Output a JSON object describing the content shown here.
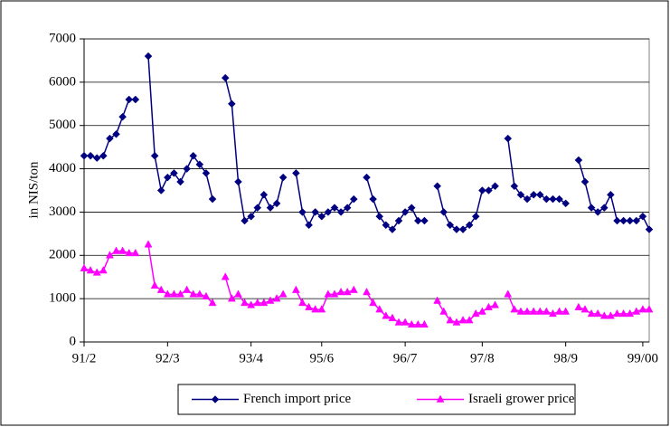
{
  "chart_data": {
    "type": "line",
    "y_label": "in NIS/ton",
    "categories": [
      "91/2",
      null,
      null,
      null,
      null,
      null,
      null,
      null,
      null,
      null,
      null,
      null,
      null,
      "92/3",
      null,
      null,
      null,
      null,
      null,
      null,
      null,
      null,
      null,
      null,
      null,
      null,
      "93/4",
      null,
      null,
      null,
      null,
      null,
      null,
      null,
      null,
      null,
      null,
      "95/6",
      null,
      null,
      null,
      null,
      null,
      null,
      null,
      null,
      null,
      null,
      null,
      null,
      "96/7",
      null,
      null,
      null,
      null,
      null,
      null,
      null,
      null,
      null,
      null,
      null,
      "97/8",
      null,
      null,
      null,
      null,
      null,
      null,
      null,
      null,
      null,
      null,
      null,
      null,
      "98/9",
      null,
      null,
      null,
      null,
      null,
      null,
      null,
      null,
      null,
      null,
      null,
      "99/00",
      null
    ],
    "series": [
      {
        "name": "French import price",
        "color": "#000080",
        "marker": "diamond",
        "values": [
          4300,
          4300,
          4250,
          4300,
          4700,
          4800,
          5200,
          5600,
          5600,
          null,
          6600,
          4300,
          3500,
          3800,
          3900,
          3700,
          4000,
          4300,
          4100,
          3900,
          3300,
          null,
          6100,
          5500,
          3700,
          2800,
          2900,
          3100,
          3400,
          3100,
          3200,
          3800,
          null,
          3900,
          3000,
          2700,
          3000,
          2900,
          3000,
          3100,
          3000,
          3100,
          3300,
          null,
          3800,
          3300,
          2900,
          2700,
          2600,
          2800,
          3000,
          3100,
          2800,
          2800,
          null,
          3600,
          3000,
          2700,
          2600,
          2600,
          2700,
          2900,
          3500,
          3500,
          3600,
          null,
          4700,
          3600,
          3400,
          3300,
          3400,
          3400,
          3300,
          3300,
          3300,
          3200,
          null,
          4200,
          3700,
          3100,
          3000,
          3100,
          3400,
          2800,
          2800,
          2800,
          2800,
          2900,
          2600
        ]
      },
      {
        "name": "Israeli grower price",
        "color": "#ff00ff",
        "marker": "triangle",
        "values": [
          1700,
          1650,
          1600,
          1650,
          2000,
          2100,
          2100,
          2050,
          2050,
          null,
          2250,
          1300,
          1200,
          1100,
          1100,
          1100,
          1200,
          1100,
          1100,
          1050,
          900,
          null,
          1500,
          1000,
          1100,
          900,
          850,
          900,
          900,
          950,
          1000,
          1100,
          null,
          1200,
          900,
          800,
          750,
          750,
          1100,
          1100,
          1150,
          1150,
          1200,
          null,
          1150,
          900,
          750,
          600,
          550,
          450,
          450,
          400,
          400,
          400,
          null,
          950,
          700,
          500,
          450,
          500,
          500,
          650,
          700,
          800,
          850,
          null,
          1100,
          750,
          700,
          700,
          700,
          700,
          700,
          650,
          700,
          700,
          null,
          800,
          750,
          650,
          650,
          600,
          600,
          650,
          650,
          650,
          700,
          750,
          750
        ]
      }
    ],
    "ylim": [
      0,
      7000
    ],
    "yticks": [
      0,
      1000,
      2000,
      3000,
      4000,
      5000,
      6000,
      7000
    ],
    "grid": true,
    "legend": "bottom"
  }
}
